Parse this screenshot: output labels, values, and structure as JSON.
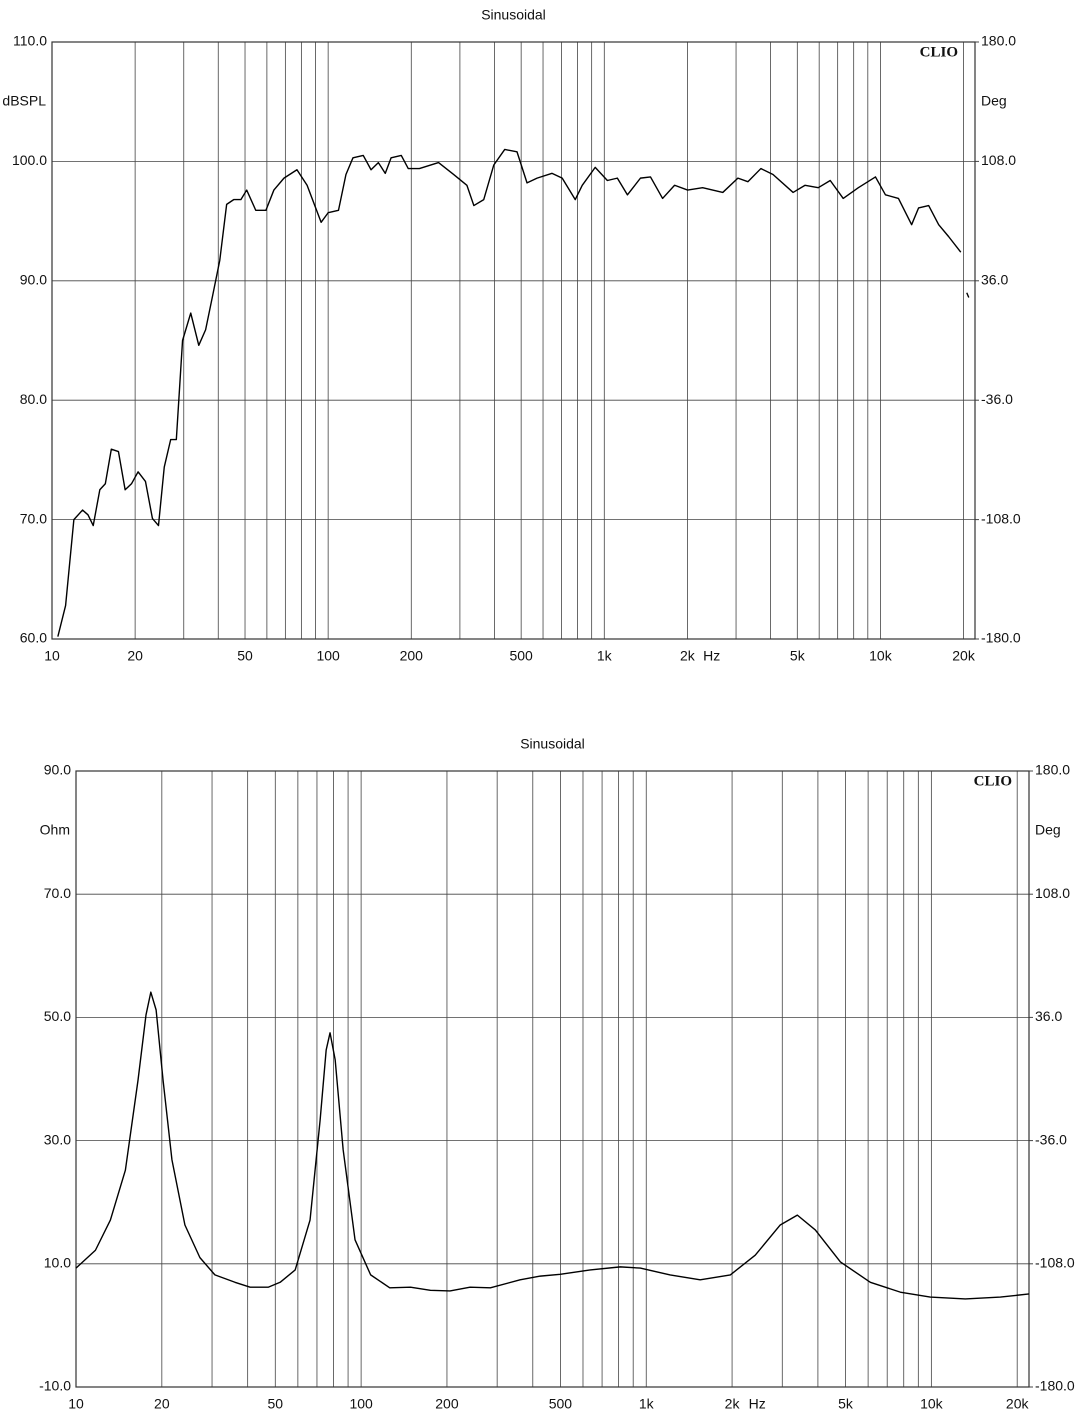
{
  "chart_data": [
    {
      "type": "line",
      "title": "Sinusoidal",
      "ylabel": "dBSPL",
      "y2label": "Deg",
      "xunit": "Hz",
      "annotation": "CLIO",
      "log_x": true,
      "grid": true,
      "color": "#000000",
      "xlim": [
        10,
        22000
      ],
      "ylim": [
        60,
        110
      ],
      "y2lim": [
        -180,
        180
      ],
      "xticks": [
        10,
        20,
        50,
        100,
        200,
        500,
        {
          "value": 1000,
          "label": "1k"
        },
        {
          "value": 2000,
          "label": "2k"
        },
        {
          "value": 5000,
          "label": "5k"
        },
        {
          "value": 10000,
          "label": "10k"
        },
        {
          "value": 20000,
          "label": "20k"
        }
      ],
      "xminorticks": [
        30,
        40,
        60,
        70,
        80,
        90,
        300,
        400,
        600,
        700,
        800,
        900,
        3000,
        4000,
        6000,
        7000,
        8000,
        9000
      ],
      "yticks": [
        {
          "value": 60,
          "label": "60.0"
        },
        {
          "value": 70,
          "label": "70.0"
        },
        {
          "value": 80,
          "label": "80.0"
        },
        {
          "value": 90,
          "label": "90.0"
        },
        {
          "value": 100,
          "label": "100.0"
        },
        {
          "value": 110,
          "label": "110.0"
        }
      ],
      "y2ticks": [
        {
          "value": -180,
          "label": "-180.0"
        },
        {
          "value": -108,
          "label": "-108.0"
        },
        {
          "value": -36,
          "label": "-36.0"
        },
        {
          "value": 36,
          "label": "36.0"
        },
        {
          "value": 108,
          "label": "108.0"
        },
        {
          "value": 180,
          "label": "180.0"
        }
      ],
      "x": [
        10.5,
        11.2,
        12.0,
        12.9,
        13.5,
        14.1,
        14.9,
        15.6,
        16.4,
        17.4,
        18.4,
        19.4,
        20.5,
        21.8,
        23.1,
        24.3,
        25.5,
        26.9,
        28.2,
        29.7,
        31.8,
        34.0,
        36.0,
        38.2,
        40.5,
        42.9,
        45.5,
        48.3,
        50.7,
        54.7,
        59.5,
        63.6,
        69.2,
        77.1,
        83.9,
        94.3,
        100,
        109,
        116,
        123,
        134,
        143,
        152,
        161,
        169,
        184,
        195,
        214,
        251,
        285,
        318,
        337,
        366,
        398,
        436,
        483,
        525,
        571,
        647,
        704,
        785,
        832,
        927,
        1026,
        1115,
        1213,
        1352,
        1470,
        1626,
        1797,
        2004,
        2270,
        2686,
        3047,
        3311,
        3690,
        4083,
        4827,
        5335,
        5955,
        6580,
        7331,
        8318,
        9594,
        10426,
        11620,
        12970,
        13740,
        14950,
        16250,
        17660,
        19540,
        20000,
        20540,
        20890
      ],
      "values": [
        60.2,
        62.8,
        70.0,
        70.8,
        70.4,
        69.5,
        72.5,
        73.0,
        75.9,
        75.7,
        72.5,
        73.0,
        74.0,
        73.2,
        70.1,
        69.5,
        74.4,
        76.7,
        76.7,
        85.0,
        87.3,
        84.6,
        85.9,
        88.8,
        91.7,
        96.4,
        96.8,
        96.8,
        97.6,
        95.9,
        95.9,
        97.6,
        98.6,
        99.3,
        98.0,
        94.9,
        95.7,
        95.9,
        98.9,
        100.3,
        100.5,
        99.3,
        99.9,
        99.0,
        100.3,
        100.5,
        99.4,
        99.4,
        99.9,
        98.9,
        98.0,
        96.3,
        96.8,
        99.7,
        101.0,
        100.8,
        98.2,
        98.6,
        99.0,
        98.6,
        96.8,
        98.0,
        99.5,
        98.4,
        98.6,
        97.2,
        98.6,
        98.7,
        96.9,
        98.0,
        97.6,
        97.8,
        97.4,
        98.6,
        98.3,
        99.4,
        98.9,
        97.4,
        98.0,
        97.8,
        98.4,
        96.9,
        97.8,
        98.7,
        97.2,
        96.9,
        94.7,
        96.1,
        96.3,
        94.7,
        93.7,
        92.4,
        null,
        89.0,
        88.6
      ]
    },
    {
      "type": "line",
      "title": "Sinusoidal",
      "ylabel": "Ohm",
      "y2label": "Deg",
      "xunit": "Hz",
      "annotation": "CLIO",
      "log_x": true,
      "grid": true,
      "color": "#000000",
      "xlim": [
        10,
        22000
      ],
      "ylim": [
        -10,
        90
      ],
      "y2lim": [
        -180,
        180
      ],
      "xticks": [
        10,
        20,
        50,
        100,
        200,
        500,
        {
          "value": 1000,
          "label": "1k"
        },
        {
          "value": 2000,
          "label": "2k"
        },
        {
          "value": 5000,
          "label": "5k"
        },
        {
          "value": 10000,
          "label": "10k"
        },
        {
          "value": 20000,
          "label": "20k"
        }
      ],
      "xminorticks": [
        30,
        40,
        60,
        70,
        80,
        90,
        300,
        400,
        600,
        700,
        800,
        900,
        3000,
        4000,
        6000,
        7000,
        8000,
        9000
      ],
      "yticks": [
        {
          "value": -10,
          "label": "-10.0"
        },
        {
          "value": 10,
          "label": "10.0"
        },
        {
          "value": 30,
          "label": "30.0"
        },
        {
          "value": 50,
          "label": "50.0"
        },
        {
          "value": 70,
          "label": "70.0"
        },
        {
          "value": 90,
          "label": "90.0"
        }
      ],
      "y2ticks": [
        {
          "value": -180,
          "label": "-180.0"
        },
        {
          "value": -108,
          "label": "-108.0"
        },
        {
          "value": -36,
          "label": "-36.0"
        },
        {
          "value": 36,
          "label": "36.0"
        },
        {
          "value": 108,
          "label": "108.0"
        },
        {
          "value": 180,
          "label": "180.0"
        }
      ],
      "x": [
        10,
        11.7,
        13.2,
        14.9,
        16.5,
        17.6,
        18.3,
        19.1,
        20.2,
        21.7,
        24.1,
        27.2,
        30.7,
        36.1,
        40.8,
        47.2,
        52.0,
        58.7,
        66.2,
        71.8,
        75.4,
        77.8,
        81.1,
        86.5,
        95.2,
        108,
        126,
        149,
        175,
        205,
        241,
        284,
        361,
        425,
        499,
        636,
        811,
        953,
        1213,
        1546,
        1972,
        2411,
        2951,
        3388,
        3917,
        4797,
        6109,
        7780,
        9908,
        13150,
        17460,
        22000
      ],
      "values": [
        9.3,
        12.2,
        17.1,
        25.2,
        39.8,
        50.4,
        54.1,
        51.2,
        39.8,
        26.9,
        16.3,
        11.0,
        8.2,
        7.0,
        6.2,
        6.2,
        7.0,
        9.0,
        17.1,
        33.3,
        44.7,
        47.5,
        43.1,
        28.5,
        13.9,
        8.2,
        6.1,
        6.2,
        5.7,
        5.6,
        6.2,
        6.1,
        7.4,
        8.0,
        8.3,
        9.0,
        9.5,
        9.3,
        8.2,
        7.4,
        8.2,
        11.4,
        16.3,
        17.9,
        15.5,
        10.3,
        7.0,
        5.4,
        4.6,
        4.3,
        4.6,
        5.1
      ]
    }
  ]
}
